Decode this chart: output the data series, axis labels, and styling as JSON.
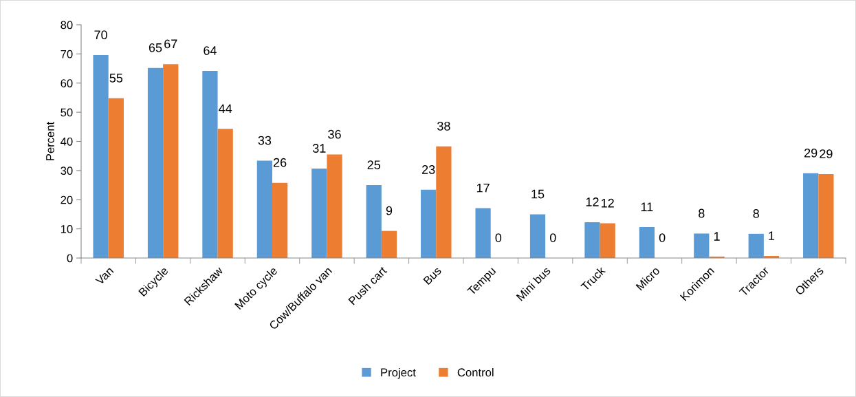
{
  "chart_data": {
    "type": "bar",
    "ylabel": "Percent",
    "categories": [
      "Van",
      "Bicycle",
      "Rickshaw",
      "Moto cycle",
      "Cow/Buffalo van",
      "Push cart",
      "Bus",
      "Tempu",
      "Mini bus",
      "Truck",
      "Micro",
      "Korimon",
      "Tractor",
      "Others"
    ],
    "series": [
      {
        "name": "Project",
        "color": "#5b9bd5",
        "values": [
          69.6,
          65.2,
          64.2,
          33.4,
          30.7,
          25.0,
          23.4,
          17.1,
          15.0,
          12.3,
          10.6,
          8.4,
          8.3,
          29.1
        ],
        "value_labels": [
          "70",
          "65",
          "64",
          "33",
          "31",
          "25",
          "23",
          "17",
          "15",
          "12",
          "11",
          "8",
          "8",
          "29"
        ]
      },
      {
        "name": "Control",
        "color": "#ed7d31",
        "values": [
          54.8,
          66.5,
          44.3,
          25.8,
          35.5,
          9.3,
          38.3,
          0,
          0,
          11.9,
          0,
          0.5,
          0.7,
          28.8
        ],
        "value_labels": [
          "55",
          "67",
          "44",
          "26",
          "36",
          "9",
          "38",
          "0",
          "0",
          "12",
          "0",
          "1",
          "1",
          "29"
        ]
      }
    ],
    "ylim": [
      0,
      80
    ],
    "yticks": [
      0,
      10,
      20,
      30,
      40,
      50,
      60,
      70,
      80
    ],
    "grid": false,
    "legend": "bottom"
  }
}
